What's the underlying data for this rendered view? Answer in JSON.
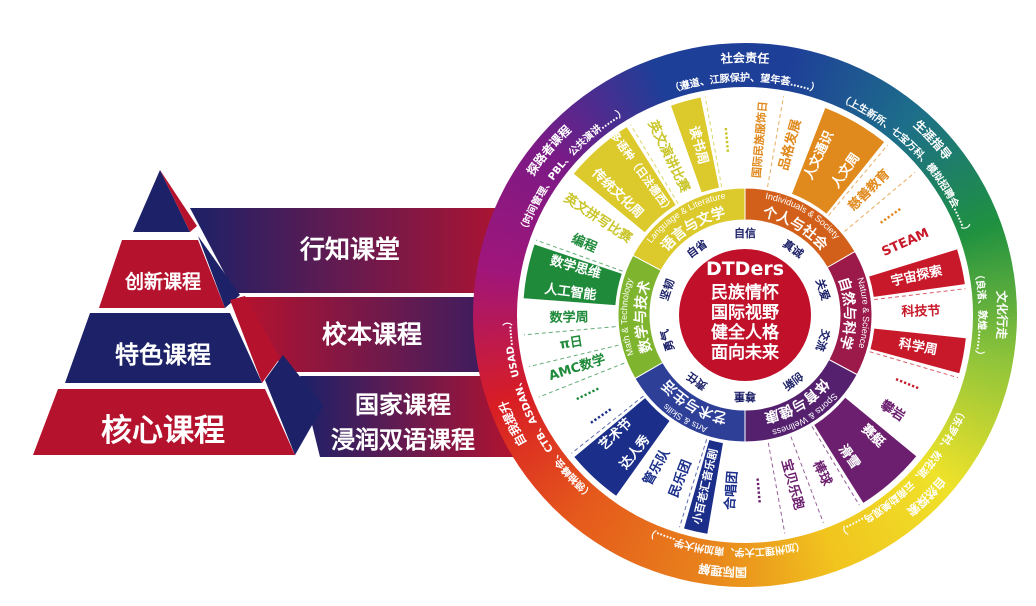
{
  "colors": {
    "red": "#b5122e",
    "navy": "#1c2168",
    "core": "#c0102a",
    "ring_gradient": [
      "#1e3f98",
      "#1e3f98",
      "#1d6e8a",
      "#1f9140",
      "#8fc43a",
      "#efe22a",
      "#f1c41e",
      "#e8811c",
      "#e5591c",
      "#d81d24",
      "#a0167a",
      "#7a1a86",
      "#1e3f98"
    ]
  },
  "pyramid": {
    "tiers": [
      {
        "label": "创新课程",
        "ribbon": [
          "行知课堂"
        ]
      },
      {
        "label": "特色课程",
        "ribbon": [
          "校本课程"
        ]
      },
      {
        "label": "核心课程",
        "ribbon": [
          "国家课程",
          "浸润双语课程"
        ]
      }
    ]
  },
  "core": {
    "title": "DTDers",
    "lines": [
      "民族情怀",
      "国际视野",
      "健全人格",
      "面向未来"
    ]
  },
  "values": [
    "自信",
    "真诚",
    "关爱",
    "交流",
    "创新",
    "尊重",
    "责任",
    "勇气",
    "坚韧",
    "自省"
  ],
  "categories": [
    {
      "zh": "语言与文学",
      "en": "Language & Literature",
      "color": "#dcc92c",
      "text_color": "#c9c52a",
      "items": [
        {
          "labels": [
            "英文拼写比赛"
          ],
          "bar": false
        },
        {
          "labels": [
            "传统文化周",
            "多语种（日法德西）"
          ],
          "bar": true
        },
        {
          "labels": [
            "英文演讲比赛"
          ],
          "bar": false
        },
        {
          "labels": [
            "读书周"
          ],
          "bar": true
        },
        {
          "labels": [
            "……"
          ],
          "bar": false
        }
      ]
    },
    {
      "zh": "个人与社会",
      "en": "Individuals & Society",
      "color": "#d2601a",
      "text_color": "#e08a1e",
      "bar_color": "#e08a1e",
      "items": [
        {
          "labels": [
            "国际民族服饰日"
          ],
          "bar": false
        },
        {
          "labels": [
            "品格发展"
          ],
          "bar": false
        },
        {
          "labels": [
            "人文通识",
            "人文周"
          ],
          "bar": true
        },
        {
          "labels": [
            "慈善教育"
          ],
          "bar": false
        },
        {
          "labels": [
            "……"
          ],
          "bar": false
        }
      ]
    },
    {
      "zh": "自然与科学",
      "en": "Nature & Science",
      "color": "#9c1a4a",
      "text_color": "#c8192a",
      "bar_color": "#c8192a",
      "items": [
        {
          "labels": [
            "STEAM"
          ],
          "bar": false
        },
        {
          "labels": [
            "宇宙探索"
          ],
          "bar": true
        },
        {
          "labels": [
            "科技节"
          ],
          "bar": false
        },
        {
          "labels": [
            "科学周"
          ],
          "bar": true
        },
        {
          "labels": [
            "……"
          ],
          "bar": false
        }
      ]
    },
    {
      "zh": "体育与健康",
      "en": "Sports & Wellness",
      "color": "#55216f",
      "text_color": "#6b1f6e",
      "bar_color": "#6b1f6e",
      "items": [
        {
          "labels": [
            "攀岩"
          ],
          "bar": false
        },
        {
          "labels": [
            "赛艇",
            "滑雪"
          ],
          "bar": true
        },
        {
          "labels": [
            "棒球"
          ],
          "bar": false
        },
        {
          "labels": [
            "宝贝乐跑"
          ],
          "bar": false
        },
        {
          "labels": [
            "……"
          ],
          "bar": false
        }
      ]
    },
    {
      "zh": "艺术与生活",
      "en": "Arts & Skills",
      "color": "#2e3f98",
      "text_color": "#1b2f8a",
      "bar_color": "#1b2f8a",
      "items": [
        {
          "labels": [
            "合唱团"
          ],
          "bar": false
        },
        {
          "labels": [
            "小百老汇音乐剧"
          ],
          "bar": true
        },
        {
          "labels": [
            "民乐团",
            "管乐队"
          ],
          "bar": false
        },
        {
          "labels": [
            "达人秀",
            "艺术节"
          ],
          "bar": true
        },
        {
          "labels": [
            "……"
          ],
          "bar": false
        }
      ]
    },
    {
      "zh": "数学与技术",
      "en": "Math & Technology",
      "color": "#7fb52e",
      "text_color": "#1f8a3a",
      "bar_color": "#1f8a3a",
      "items": [
        {
          "labels": [
            "……"
          ],
          "bar": false
        },
        {
          "labels": [
            "AMC数学"
          ],
          "bar": false
        },
        {
          "labels": [
            "π日"
          ],
          "bar": false
        },
        {
          "labels": [
            "数学周"
          ],
          "bar": false
        },
        {
          "labels": [
            "人工智能",
            "数学思维"
          ],
          "bar": true
        },
        {
          "labels": [
            "编程"
          ],
          "bar": false
        }
      ]
    }
  ],
  "outer_ring": [
    {
      "title": "社会责任",
      "sub": "（遵道、江豚保护、望年荟……）"
    },
    {
      "title": "生涯指导",
      "sub": "（上生新所、七宝万科、模拟招聘会……）"
    },
    {
      "title": "文化行走",
      "sub": "（良渚、敦煌……）"
    },
    {
      "title": "自然探索",
      "sub": "（东罗村、松花湖、云南勐美观鸟……）"
    },
    {
      "title": "国际理解",
      "sub": "（加州理工大学、南加州大学……）"
    },
    {
      "title": "自我提升",
      "sub": "（领袖峰会、CTB、ASDAN、USAD……）"
    },
    {
      "title": "探路者课程",
      "sub": "（时间管理、PBL、公共演讲……）"
    }
  ]
}
